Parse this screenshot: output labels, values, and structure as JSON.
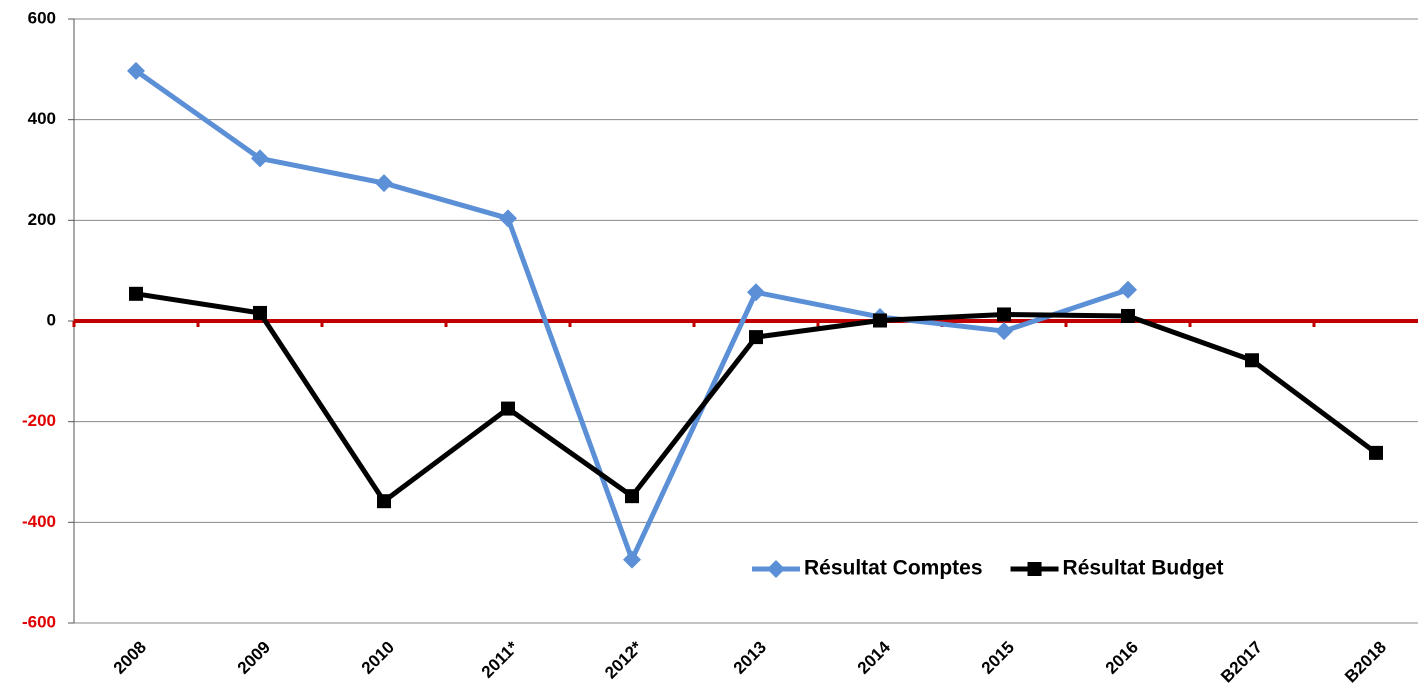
{
  "chart_data": {
    "type": "line",
    "categories": [
      "2008",
      "2009",
      "2010",
      "2011*",
      "2012*",
      "2013",
      "2014",
      "2015",
      "2016",
      "B2017",
      "B2018"
    ],
    "series": [
      {
        "name": "Résultat Comptes",
        "color": "#5b8fd6",
        "marker": "diamond",
        "values": [
          497,
          323,
          274,
          204,
          -474,
          57,
          8,
          -20,
          62,
          null,
          null
        ]
      },
      {
        "name": "Résultat Budget",
        "color": "#000000",
        "marker": "square",
        "values": [
          54,
          16,
          -358,
          -174,
          -348,
          -32,
          1,
          13,
          10,
          -78,
          -262
        ]
      }
    ],
    "ylim": [
      -600,
      600
    ],
    "yticks": [
      -600,
      -400,
      -200,
      0,
      200,
      400,
      600
    ],
    "grid": true,
    "zero_line_color": "#c00000",
    "negative_tick_color": "#e00000",
    "legend": "lower right"
  }
}
